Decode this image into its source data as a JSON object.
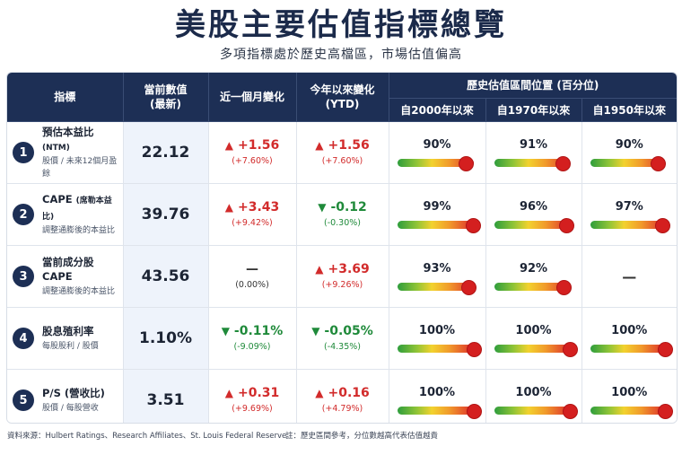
{
  "title": "美股主要估值指標總覽",
  "subtitle": "多項指標處於歷史高檔區，市場估值偏高",
  "headers": {
    "metric": "指標",
    "current_line1": "當前數值",
    "current_line2": "(最新)",
    "one_month": "近一個月變化",
    "ytd_line1": "今年以來變化",
    "ytd_line2": "(YTD)",
    "percentile_group": "歷史估值區間位置 (百分位)",
    "since_2000": "自2000年以來",
    "since_1970": "自1970年以來",
    "since_1950": "自1950年以來"
  },
  "rows": [
    {
      "num": "1",
      "name": "預估本益比",
      "name_tag": "(NTM)",
      "desc": "股價 / 未來12個月盈餘",
      "current": "22.12",
      "m_dir": "up",
      "m_arrow": "▲",
      "m_main": "+1.56",
      "m_sub": "(+7.60%)",
      "y_dir": "up",
      "y_arrow": "▲",
      "y_main": "+1.56",
      "y_sub": "(+7.60%)",
      "p2000": "90%",
      "p2000_value": 0.9,
      "p1970": "91%",
      "p1970_value": 0.91,
      "p1950": "90%",
      "p1950_value": 0.9
    },
    {
      "num": "2",
      "name": "CAPE",
      "name_tag": "(席勒本益比)",
      "desc": "調整通膨後的本益比",
      "current": "39.76",
      "m_dir": "up",
      "m_arrow": "▲",
      "m_main": "+3.43",
      "m_sub": "(+9.42%)",
      "y_dir": "down",
      "y_arrow": "▼",
      "y_main": "-0.12",
      "y_sub": "(-0.30%)",
      "p2000": "99%",
      "p2000_value": 0.99,
      "p1970": "96%",
      "p1970_value": 0.96,
      "p1950": "97%",
      "p1950_value": 0.97
    },
    {
      "num": "3",
      "name": "當前成分股CAPE",
      "name_tag": "",
      "desc": "調整通膨後的本益比",
      "current": "43.56",
      "m_dir": "flat",
      "m_arrow": "",
      "m_main": "—",
      "m_sub": "(0.00%)",
      "y_dir": "up",
      "y_arrow": "▲",
      "y_main": "+3.69",
      "y_sub": "(+9.26%)",
      "p2000": "93%",
      "p2000_value": 0.93,
      "p1970": "92%",
      "p1970_value": 0.92,
      "p1950": "—",
      "p1950_value": null
    },
    {
      "num": "4",
      "name": "股息殖利率",
      "name_tag": "",
      "desc": "每股股利 / 股價",
      "current": "1.10%",
      "m_dir": "down",
      "m_arrow": "▼",
      "m_main": "-0.11%",
      "m_sub": "(-9.09%)",
      "y_dir": "down",
      "y_arrow": "▼",
      "y_main": "-0.05%",
      "y_sub": "(-4.35%)",
      "p2000": "100%",
      "p2000_value": 1.0,
      "p1970": "100%",
      "p1970_value": 1.0,
      "p1950": "100%",
      "p1950_value": 1.0
    },
    {
      "num": "5",
      "name": "P/S (營收比)",
      "name_tag": "",
      "desc": "股價 / 每股營收",
      "current": "3.51",
      "m_dir": "up",
      "m_arrow": "▲",
      "m_main": "+0.31",
      "m_sub": "(+9.69%)",
      "y_dir": "up",
      "y_arrow": "▲",
      "y_main": "+0.16",
      "y_sub": "(+4.79%)",
      "p2000": "100%",
      "p2000_value": 1.0,
      "p1970": "100%",
      "p1970_value": 1.0,
      "p1950": "100%",
      "p1950_value": 1.0
    }
  ],
  "footer": {
    "source": "資料來源：Hulbert Ratings、Research Affiliates、St. Louis Federal Reserve",
    "note": "註：歷史區間參考，分位數越高代表估值越貴"
  },
  "colors": {
    "header_bg": "#1d2f55",
    "up": "#d22b2b",
    "down": "#1f8a3a",
    "dot": "#d41f1f"
  }
}
